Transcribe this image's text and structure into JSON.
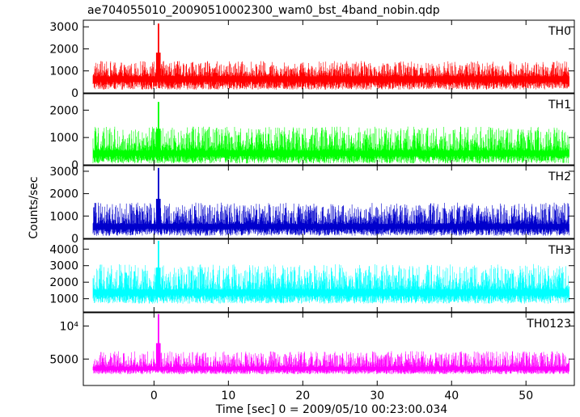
{
  "title": "ae704055010_20090510002300_wam0_bst_4band_nobin.qdp",
  "xlabel": "Time [sec] 0 = 2009/05/10 00:23:00.034",
  "ylabel": "Counts/sec",
  "chart_data": {
    "type": "line",
    "x_range": [
      -9.5,
      56.5
    ],
    "x_ticks": [
      0,
      10,
      20,
      30,
      40,
      50
    ],
    "x_tick_labels": [
      "0",
      "10",
      "20",
      "30",
      "40",
      "50"
    ],
    "burst_time": 0.6,
    "data_start": -8.2,
    "data_end": 55.8,
    "panels": [
      {
        "name": "TH0",
        "color": "#ff0000",
        "ylim": [
          0,
          3300
        ],
        "y_ticks": [
          0,
          1000,
          2000,
          3000
        ],
        "y_tick_labels": [
          "0",
          "1000",
          "2000",
          "3000"
        ],
        "baseline": 750,
        "noise_low": 150,
        "noise_high": 1450,
        "peak": 3150
      },
      {
        "name": "TH1",
        "color": "#00ff00",
        "ylim": [
          0,
          2600
        ],
        "y_ticks": [
          0,
          1000,
          2000
        ],
        "y_tick_labels": [
          "0",
          "1000",
          "2000"
        ],
        "baseline": 520,
        "noise_low": 50,
        "noise_high": 1400,
        "peak": 2300
      },
      {
        "name": "TH2",
        "color": "#0000cc",
        "ylim": [
          0,
          3250
        ],
        "y_ticks": [
          0,
          1000,
          2000,
          3000
        ],
        "y_tick_labels": [
          "0",
          "1000",
          "2000",
          "3000"
        ],
        "baseline": 640,
        "noise_low": 120,
        "noise_high": 1600,
        "peak": 3150
      },
      {
        "name": "TH3",
        "color": "#00ffff",
        "ylim": [
          200,
          4600
        ],
        "y_ticks": [
          1000,
          2000,
          3000,
          4000
        ],
        "y_tick_labels": [
          "1000",
          "2000",
          "3000",
          "4000"
        ],
        "baseline": 1550,
        "noise_low": 700,
        "noise_high": 3100,
        "peak": 4500
      },
      {
        "name": "TH0123",
        "color": "#ff00ff",
        "ylim": [
          1000,
          12000
        ],
        "y_ticks": [
          5000,
          10000
        ],
        "y_tick_labels": [
          "5000",
          "10⁴"
        ],
        "baseline": 3800,
        "noise_low": 2700,
        "noise_high": 6200,
        "peak": 11800
      }
    ]
  }
}
